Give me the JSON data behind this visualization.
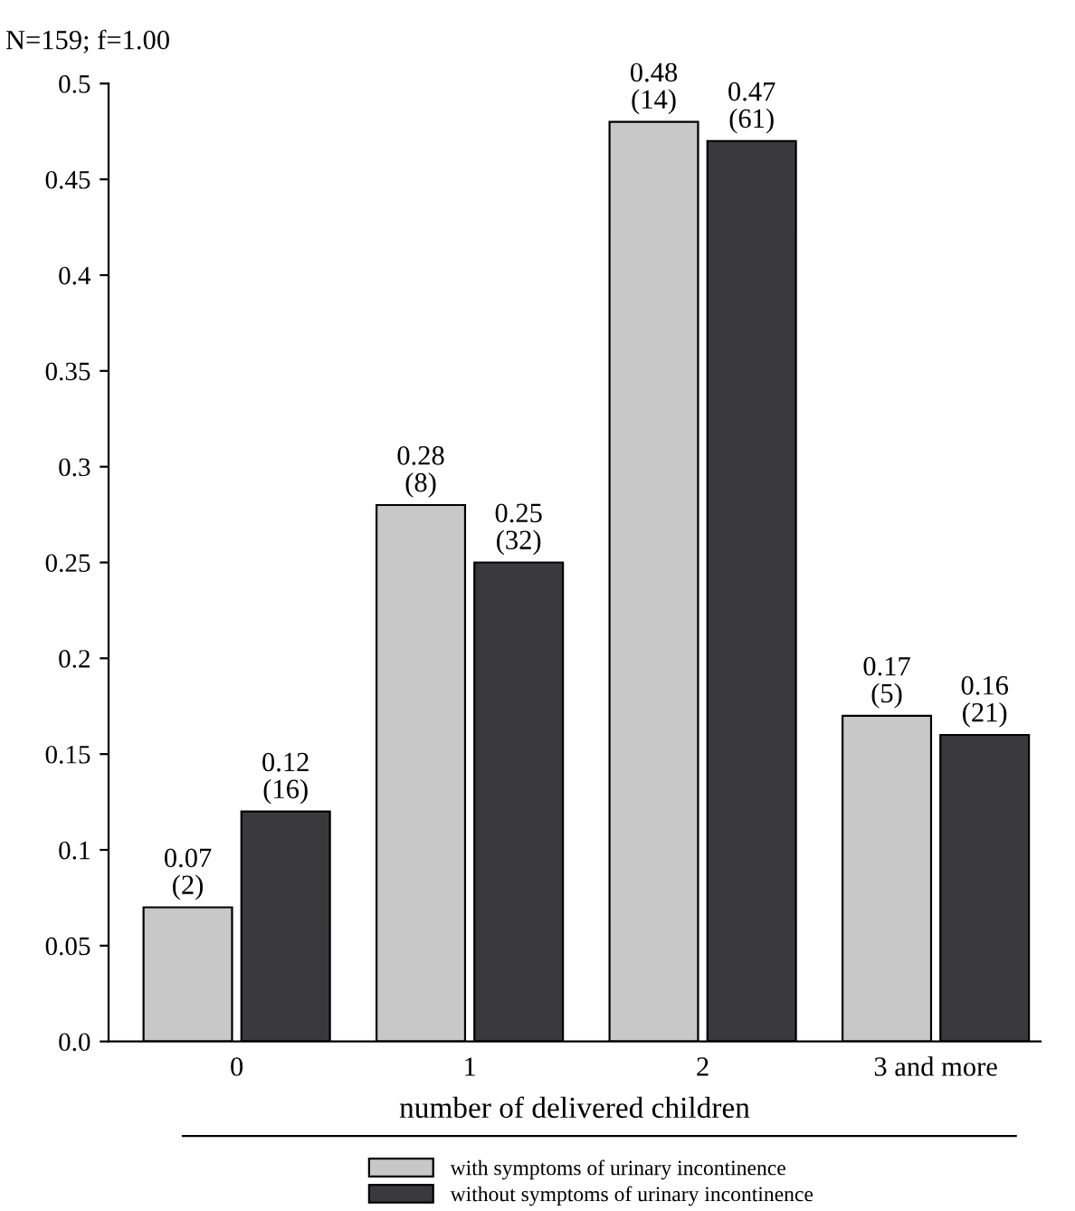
{
  "chart_data": {
    "type": "bar",
    "xlabel": "number of delivered children",
    "annotations": [
      "N=159; f=1.00"
    ],
    "categories": [
      "0",
      "1",
      "2",
      "3 and more"
    ],
    "series": [
      {
        "name": "with symptoms of urinary incontinence",
        "color": "#c8c8c8",
        "values": [
          0.07,
          0.28,
          0.48,
          0.17
        ],
        "value_labels": [
          "0.07\n(2)",
          "0.28\n(8)",
          "0.48\n(14)",
          "0.17\n(5)"
        ]
      },
      {
        "name": "without symptoms of urinary incontinence",
        "color": "#3a3a3c",
        "values": [
          0.12,
          0.25,
          0.47,
          0.16
        ],
        "value_labels": [
          "0.12\n(16)",
          "0.25\n(32)",
          "0.47\n(61)",
          "0.16\n(21)"
        ]
      }
    ],
    "ylim": [
      0,
      0.5
    ],
    "yticks": [
      {
        "value": 0,
        "label": "0.0"
      },
      0.05,
      0.1,
      0.15,
      0.2,
      0.25,
      0.3,
      0.35,
      0.4,
      0.45,
      0.5
    ],
    "grid": false,
    "legend": "bottom"
  }
}
